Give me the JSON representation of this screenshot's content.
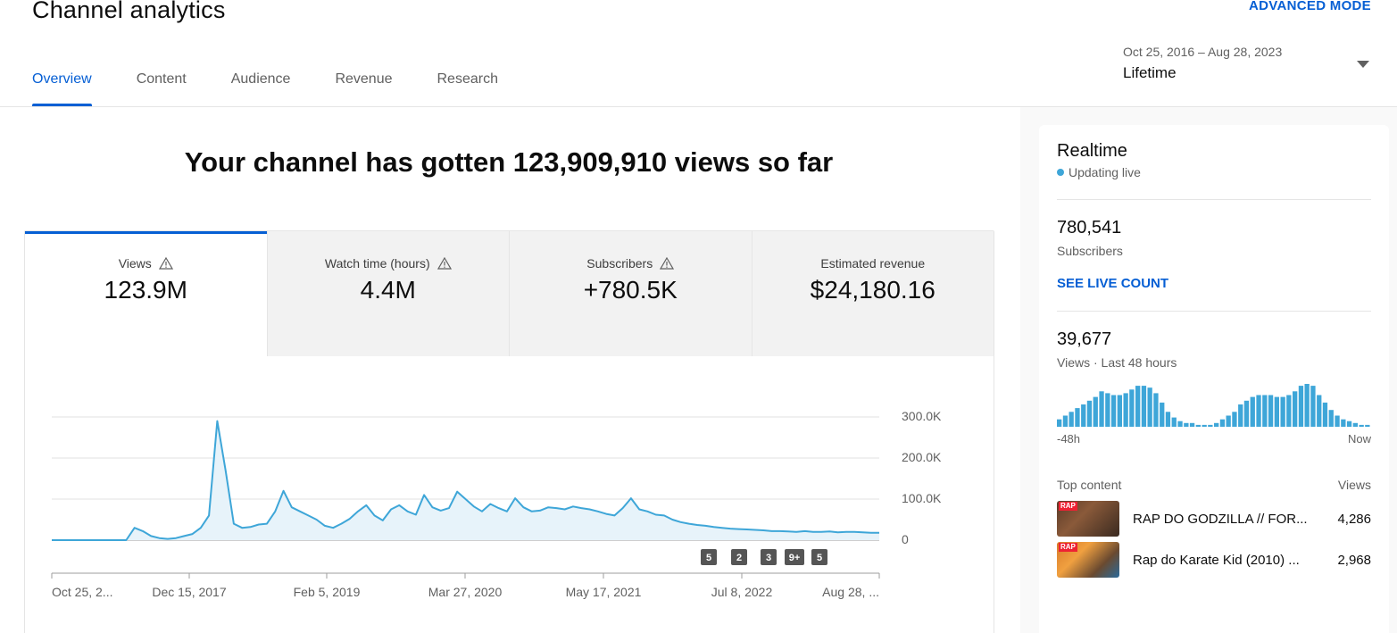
{
  "header": {
    "title": "Channel analytics",
    "advanced_mode": "ADVANCED MODE"
  },
  "tabs": [
    {
      "label": "Overview",
      "active": true
    },
    {
      "label": "Content"
    },
    {
      "label": "Audience"
    },
    {
      "label": "Revenue"
    },
    {
      "label": "Research"
    }
  ],
  "date_picker": {
    "range": "Oct 25, 2016 – Aug 28, 2023",
    "label": "Lifetime"
  },
  "headline": "Your channel has gotten 123,909,910 views so far",
  "metrics": [
    {
      "label": "Views",
      "value": "123.9M",
      "warning": true
    },
    {
      "label": "Watch time (hours)",
      "value": "4.4M",
      "warning": true
    },
    {
      "label": "Subscribers",
      "value": "+780.5K",
      "warning": true
    },
    {
      "label": "Estimated revenue",
      "value": "$24,180.16",
      "warning": false
    }
  ],
  "chart_data": {
    "type": "area",
    "series": [
      {
        "values": [
          0,
          0,
          0,
          0,
          0,
          0,
          0,
          0,
          0,
          0,
          30000,
          22000,
          10000,
          5000,
          3000,
          5000,
          10000,
          15000,
          30000,
          60000,
          290000,
          170000,
          40000,
          30000,
          32000,
          38000,
          40000,
          70000,
          120000,
          80000,
          70000,
          60000,
          50000,
          35000,
          30000,
          40000,
          52000,
          70000,
          85000,
          60000,
          48000,
          75000,
          85000,
          70000,
          62000,
          110000,
          80000,
          72000,
          78000,
          118000,
          100000,
          82000,
          70000,
          88000,
          78000,
          70000,
          102000,
          80000,
          70000,
          72000,
          80000,
          78000,
          75000,
          82000,
          78000,
          75000,
          70000,
          64000,
          60000,
          78000,
          102000,
          75000,
          70000,
          62000,
          60000,
          50000,
          44000,
          40000,
          37000,
          35000,
          32000,
          30000,
          28000,
          27000,
          26000,
          25000,
          24000,
          22000,
          22000,
          21000,
          20000,
          22000,
          20000,
          20000,
          21000,
          19000,
          20000,
          20000,
          19000,
          18000,
          18000
        ]
      }
    ],
    "x_tick_labels": [
      "Oct 25, 2...",
      "Dec 15, 2017",
      "Feb 5, 2019",
      "Mar 27, 2020",
      "May 17, 2021",
      "Jul 8, 2022",
      "Aug 28, ..."
    ],
    "y_tick_labels": [
      "300.0K",
      "200.0K",
      "100.0K",
      "0"
    ],
    "ylim": [
      0,
      300000
    ],
    "grid": true,
    "color": "#3ea6d8",
    "annotation_markers": [
      "5",
      "2",
      "3",
      "9+",
      "5"
    ]
  },
  "realtime": {
    "title": "Realtime",
    "status": "Updating live",
    "subscribers": "780,541",
    "subscribers_label": "Subscribers",
    "see_live_count": "SEE LIVE COUNT",
    "views": "39,677",
    "views_label": "Views · Last 48 hours",
    "bars": [
      4,
      6,
      8,
      10,
      12,
      14,
      16,
      19,
      18,
      17,
      17,
      18,
      20,
      22,
      22,
      21,
      18,
      13,
      8,
      5,
      3,
      2,
      2,
      1,
      1,
      1,
      2,
      4,
      6,
      8,
      12,
      14,
      16,
      17,
      17,
      17,
      16,
      16,
      17,
      19,
      22,
      23,
      22,
      17,
      13,
      9,
      6,
      4,
      3,
      2,
      1,
      1
    ],
    "axis_start": "-48h",
    "axis_end": "Now",
    "top_content_label": "Top content",
    "top_content_views_label": "Views",
    "top_content": [
      {
        "title": "RAP DO GODZILLA // FOR...",
        "views": "4,286"
      },
      {
        "title": "Rap do Karate Kid (2010) ...",
        "views": "2,968"
      }
    ]
  },
  "colors": {
    "accent": "#065fd4",
    "chart_line": "#3ea6d8",
    "chart_fill": "#e7f3fa"
  }
}
